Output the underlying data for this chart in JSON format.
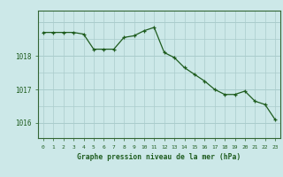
{
  "x": [
    0,
    1,
    2,
    3,
    4,
    5,
    6,
    7,
    8,
    9,
    10,
    11,
    12,
    13,
    14,
    15,
    16,
    17,
    18,
    19,
    20,
    21,
    22,
    23
  ],
  "y": [
    1018.7,
    1018.7,
    1018.7,
    1018.7,
    1018.65,
    1018.2,
    1018.2,
    1018.2,
    1018.55,
    1018.6,
    1018.75,
    1018.85,
    1018.1,
    1017.95,
    1017.65,
    1017.45,
    1017.25,
    1017.0,
    1016.85,
    1016.85,
    1016.95,
    1016.65,
    1016.55,
    1016.1
  ],
  "line_color": "#1e5c1e",
  "marker_color": "#1e5c1e",
  "bg_color": "#cce8e8",
  "grid_major_color": "#aacccc",
  "grid_minor_color": "#bbdddd",
  "border_color": "#336633",
  "tick_label_color": "#1e5c1e",
  "xlabel": "Graphe pression niveau de la mer (hPa)",
  "xlabel_color": "#1e5c1e",
  "yticks": [
    1016,
    1017,
    1018
  ],
  "xtick_labels": [
    "0",
    "1",
    "2",
    "3",
    "4",
    "5",
    "6",
    "7",
    "8",
    "9",
    "10",
    "11",
    "12",
    "13",
    "14",
    "15",
    "16",
    "17",
    "18",
    "19",
    "20",
    "21",
    "22",
    "23"
  ],
  "ylim": [
    1015.55,
    1019.35
  ],
  "xlim": [
    -0.5,
    23.5
  ],
  "figsize": [
    3.2,
    2.0
  ],
  "dpi": 100
}
